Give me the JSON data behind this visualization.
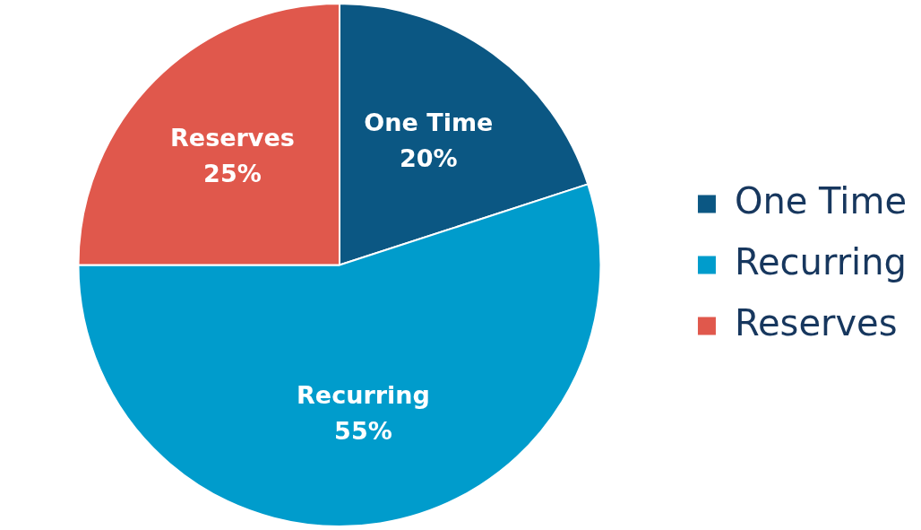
{
  "chart_data": {
    "type": "pie",
    "categories": [
      "One Time",
      "Recurring",
      "Reserves"
    ],
    "values": [
      20,
      55,
      25
    ],
    "value_labels": [
      "20%",
      "55%",
      "25%"
    ],
    "colors": [
      "#0b5783",
      "#009ccc",
      "#e0584c"
    ],
    "legend": "right"
  }
}
